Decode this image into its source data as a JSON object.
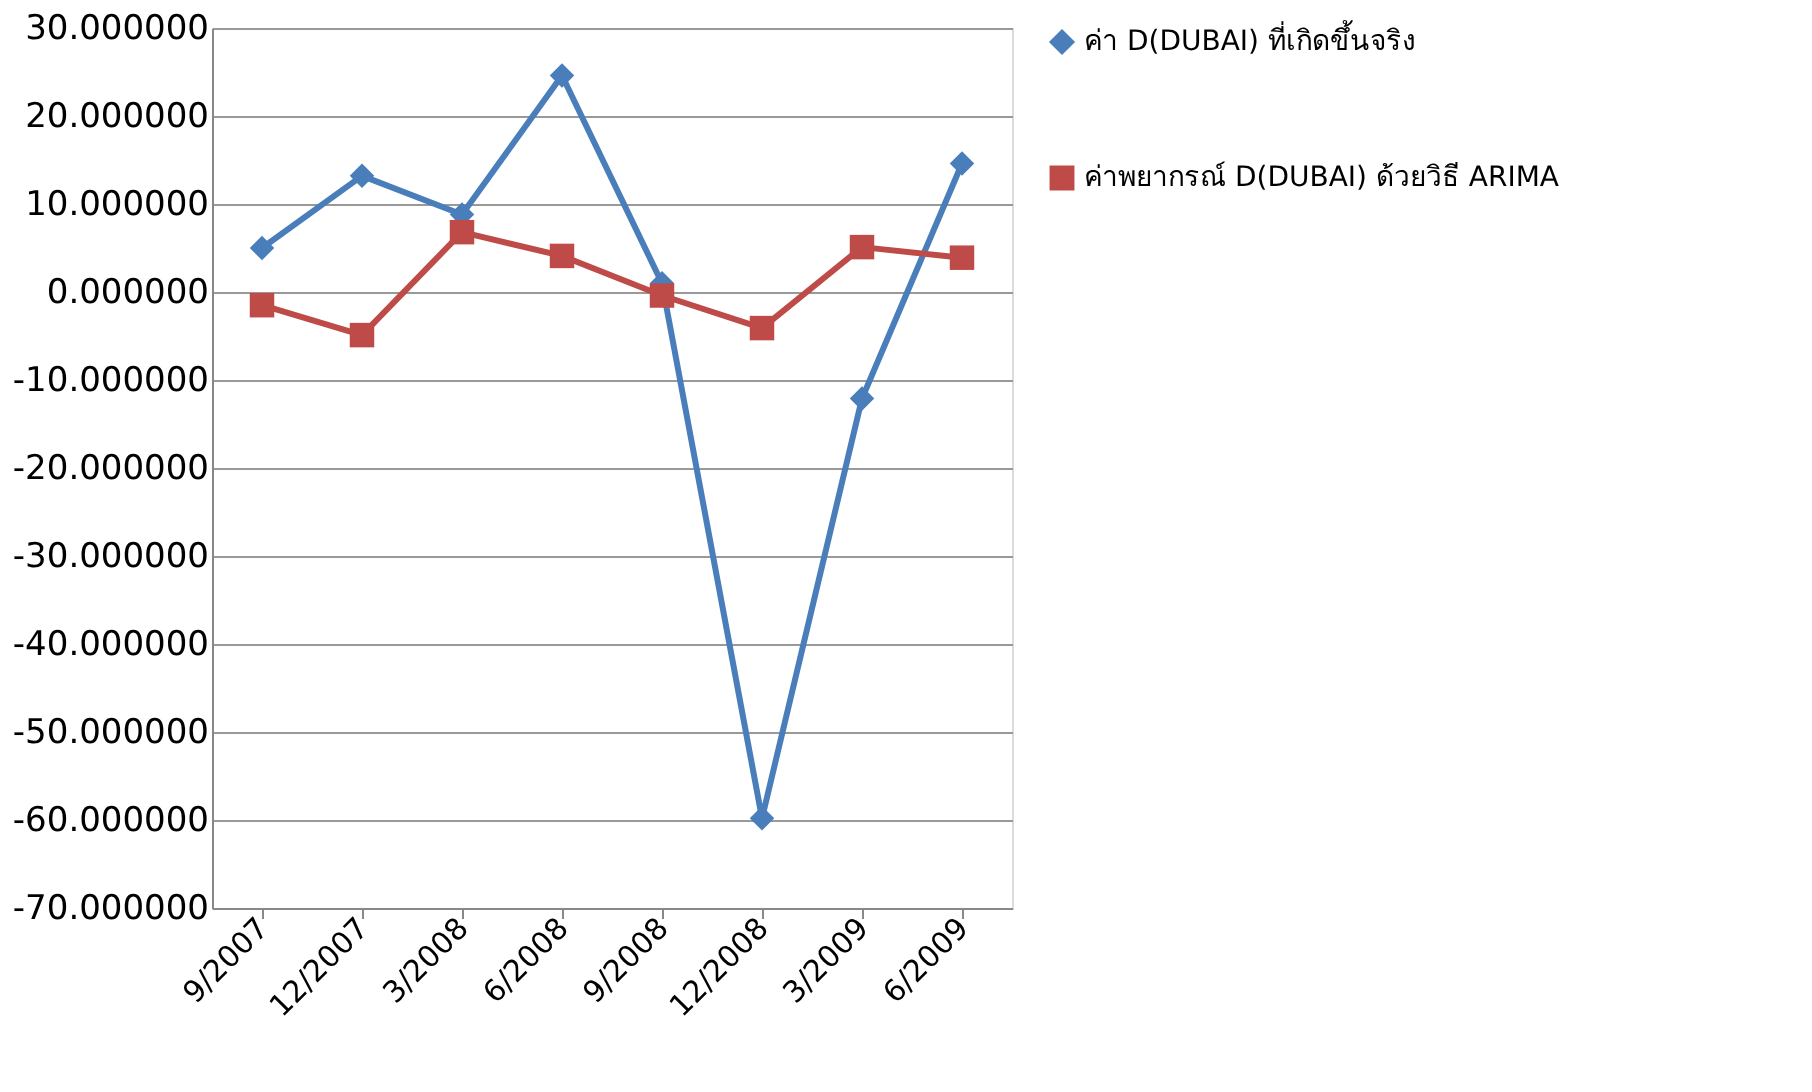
{
  "chart_data": {
    "type": "line",
    "categories": [
      "9/2007",
      "12/2007",
      "3/2008",
      "6/2008",
      "9/2008",
      "12/2008",
      "3/2009",
      "6/2009"
    ],
    "series": [
      {
        "name": "ค่า D(DUBAI) ที่เกิดขึ้นจริง",
        "color": "#4a7ebb",
        "marker": "diamond",
        "values": [
          5.0,
          13.2,
          8.8,
          24.6,
          1.0,
          -59.8,
          -12.1,
          14.6
        ]
      },
      {
        "name": "ค่าพยากรณ์ D(DUBAI) ด้วยวิธี ARIMA",
        "color": "#be4b48",
        "marker": "square",
        "values": [
          -1.5,
          -4.9,
          6.8,
          4.1,
          -0.4,
          -4.1,
          5.1,
          3.9
        ]
      }
    ],
    "ylim": [
      -70,
      30
    ],
    "yticks": [
      {
        "value": 30,
        "label": "30.000000"
      },
      {
        "value": 20,
        "label": "20.000000"
      },
      {
        "value": 10,
        "label": "10.000000"
      },
      {
        "value": 0,
        "label": "0.000000"
      },
      {
        "value": -10,
        "label": "-10.000000"
      },
      {
        "value": -20,
        "label": "-20.000000"
      },
      {
        "value": -30,
        "label": "-30.000000"
      },
      {
        "value": -40,
        "label": "-40.000000"
      },
      {
        "value": -50,
        "label": "-50.000000"
      },
      {
        "value": -60,
        "label": "-60.000000"
      },
      {
        "value": -70,
        "label": "-70.000000"
      }
    ],
    "grid": "y",
    "legend": "right",
    "line_style": "solid"
  }
}
